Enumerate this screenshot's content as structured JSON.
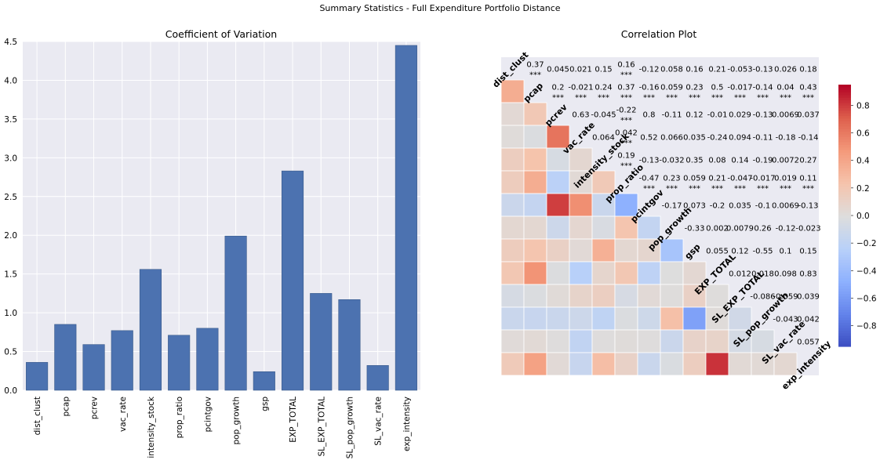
{
  "suptitle": "Summary Statistics - Full Expenditure Portfolio Distance",
  "chart_data": [
    {
      "type": "bar",
      "title": "Coefficient of Variation",
      "categories": [
        "dist_clust",
        "pcap",
        "pcrev",
        "vac_rate",
        "intensity_stock",
        "prop_ratio",
        "pcintgov",
        "pop_growth",
        "gsp",
        "EXP_TOTAL",
        "SL_EXP_TOTAL",
        "SL_pop_growth",
        "SL_vac_rate",
        "exp_intensity"
      ],
      "values": [
        0.36,
        0.85,
        0.59,
        0.77,
        1.56,
        0.71,
        0.8,
        1.99,
        0.24,
        2.83,
        1.25,
        1.17,
        0.32,
        4.45
      ],
      "ylim": [
        0,
        4.5
      ],
      "yticks": [
        "0.0",
        "0.5",
        "1.0",
        "1.5",
        "2.0",
        "2.5",
        "3.0",
        "3.5",
        "4.0",
        "4.5"
      ],
      "grid": true,
      "bar_color": "#4c72b0",
      "background": "#eaeaf2"
    },
    {
      "type": "heatmap",
      "title": "Correlation Plot",
      "variables": [
        "dist_clust",
        "pcap",
        "pcrev",
        "vac_rate",
        "intensity_stock",
        "prop_ratio",
        "pcintgov",
        "pop_growth",
        "gsp",
        "EXP_TOTAL",
        "SL_EXP_TOTAL",
        "SL_pop_growth",
        "SL_vac_rate",
        "exp_intensity"
      ],
      "upper_labels": [
        [
          "",
          "0.37\n***",
          "0.045",
          "0.021",
          "0.15",
          "0.16\n***",
          "-0.12",
          "0.058",
          "0.16",
          "0.21",
          "-0.053",
          "-0.13",
          "0.026",
          "0.18"
        ],
        [
          "",
          "",
          "0.2\n***",
          "-0.021\n***",
          "0.24\n***",
          "0.37\n***",
          "-0.16\n***",
          "0.059\n***",
          "0.23\n***",
          "0.5\n***",
          "-0.017\n***",
          "-0.14\n***",
          "0.04\n***",
          "0.43\n***"
        ],
        [
          "",
          "",
          "",
          "0.63",
          "-0.045",
          "-0.22\n***",
          "0.8",
          "-0.11",
          "0.12",
          "-0.01",
          "0.029",
          "-0.13",
          "0.0069",
          "0.037"
        ],
        [
          "",
          "",
          "",
          "",
          "0.064",
          "0.042\n***",
          "0.52",
          "0.066",
          "0.035",
          "-0.24",
          "0.094",
          "-0.11",
          "-0.18",
          "-0.14"
        ],
        [
          "",
          "",
          "",
          "",
          "",
          "0.19\n***",
          "-0.13",
          "-0.032",
          "0.35",
          "0.08",
          "0.14",
          "-0.19",
          "0.0072",
          "0.27"
        ],
        [
          "",
          "",
          "",
          "",
          "",
          "",
          "-0.47\n***",
          "0.23\n***",
          "0.059\n***",
          "0.21\n***",
          "-0.047\n***",
          "-0.017\n***",
          "0.019\n***",
          "0.11\n***"
        ],
        [
          "",
          "",
          "",
          "",
          "",
          "",
          "",
          "-0.17",
          "0.073",
          "-0.2",
          "0.035",
          "-0.1",
          "0.0069",
          "-0.13"
        ],
        [
          "",
          "",
          "",
          "",
          "",
          "",
          "",
          "",
          "-0.33",
          "0.002",
          "0.0079",
          "0.26",
          "-0.12",
          "-0.023"
        ],
        [
          "",
          "",
          "",
          "",
          "",
          "",
          "",
          "",
          "",
          "0.055",
          "0.12",
          "-0.55",
          "0.1",
          "0.15"
        ],
        [
          "",
          "",
          "",
          "",
          "",
          "",
          "",
          "",
          "",
          "",
          "0.012",
          "0.018",
          "0.098",
          "0.83"
        ],
        [
          "",
          "",
          "",
          "",
          "",
          "",
          "",
          "",
          "",
          "",
          "",
          "-0.086",
          "-0.059",
          "0.039"
        ],
        [
          "",
          "",
          "",
          "",
          "",
          "",
          "",
          "",
          "",
          "",
          "",
          "",
          "-0.043",
          "0.042"
        ],
        [
          "",
          "",
          "",
          "",
          "",
          "",
          "",
          "",
          "",
          "",
          "",
          "",
          "",
          "0.057"
        ],
        [
          "",
          "",
          "",
          "",
          "",
          "",
          "",
          "",
          "",
          "",
          "",
          "",
          "",
          ""
        ]
      ],
      "colorscale": "coolwarm",
      "vmin": -0.95,
      "vmax": 0.95,
      "colorbar_ticks": [
        "0.8",
        "0.6",
        "0.4",
        "0.2",
        "0.0",
        "−0.2",
        "−0.4",
        "−0.6",
        "−0.8"
      ],
      "colorbar_tick_values": [
        0.8,
        0.6,
        0.4,
        0.2,
        0.0,
        -0.2,
        -0.4,
        -0.6,
        -0.8
      ]
    }
  ]
}
